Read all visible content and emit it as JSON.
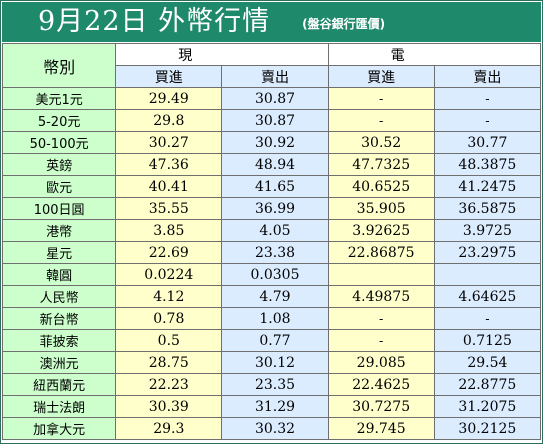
{
  "title": {
    "main": "9月22日 外幣行情",
    "source": "(盤谷銀行匯價)"
  },
  "headers": {
    "currency": "幣別",
    "cash": "現　鈔",
    "transfer": "電　匯",
    "buy": "買進",
    "sell": "賣出"
  },
  "rows": [
    {
      "currency": "美元1元",
      "cash_buy": "29.49",
      "cash_sell": "30.87",
      "tt_buy": "-",
      "tt_sell": "-"
    },
    {
      "currency": "5-20元",
      "cash_buy": "29.8",
      "cash_sell": "30.87",
      "tt_buy": "-",
      "tt_sell": "-"
    },
    {
      "currency": "50-100元",
      "cash_buy": "30.27",
      "cash_sell": "30.92",
      "tt_buy": "30.52",
      "tt_sell": "30.77"
    },
    {
      "currency": "英鎊",
      "cash_buy": "47.36",
      "cash_sell": "48.94",
      "tt_buy": "47.7325",
      "tt_sell": "48.3875"
    },
    {
      "currency": "歐元",
      "cash_buy": "40.41",
      "cash_sell": "41.65",
      "tt_buy": "40.6525",
      "tt_sell": "41.2475"
    },
    {
      "currency": "100日圓",
      "cash_buy": "35.55",
      "cash_sell": "36.99",
      "tt_buy": "35.905",
      "tt_sell": "36.5875"
    },
    {
      "currency": "港幣",
      "cash_buy": "3.85",
      "cash_sell": "4.05",
      "tt_buy": "3.92625",
      "tt_sell": "3.9725"
    },
    {
      "currency": "星元",
      "cash_buy": "22.69",
      "cash_sell": "23.38",
      "tt_buy": "22.86875",
      "tt_sell": "23.2975"
    },
    {
      "currency": "韓圓",
      "cash_buy": "0.0224",
      "cash_sell": "0.0305",
      "tt_buy": "",
      "tt_sell": ""
    },
    {
      "currency": "人民幣",
      "cash_buy": "4.12",
      "cash_sell": "4.79",
      "tt_buy": "4.49875",
      "tt_sell": "4.64625"
    },
    {
      "currency": "新台幣",
      "cash_buy": "0.78",
      "cash_sell": "1.08",
      "tt_buy": "-",
      "tt_sell": "-"
    },
    {
      "currency": "菲披索",
      "cash_buy": "0.5",
      "cash_sell": "0.77",
      "tt_buy": "-",
      "tt_sell": "0.7125"
    },
    {
      "currency": "澳洲元",
      "cash_buy": "28.75",
      "cash_sell": "30.12",
      "tt_buy": "29.085",
      "tt_sell": "29.54"
    },
    {
      "currency": "紐西蘭元",
      "cash_buy": "22.23",
      "cash_sell": "23.35",
      "tt_buy": "22.4625",
      "tt_sell": "22.8775"
    },
    {
      "currency": "瑞士法朗",
      "cash_buy": "30.39",
      "cash_sell": "31.29",
      "tt_buy": "30.7275",
      "tt_sell": "31.2075"
    },
    {
      "currency": "加拿大元",
      "cash_buy": "29.3",
      "cash_sell": "30.32",
      "tt_buy": "29.745",
      "tt_sell": "30.2125"
    }
  ],
  "colors": {
    "title_bg": "#1f8a6b",
    "name_bg": "#ccffcc",
    "buy_bg": "#ffffcc",
    "sell_bg": "#dcecff"
  }
}
